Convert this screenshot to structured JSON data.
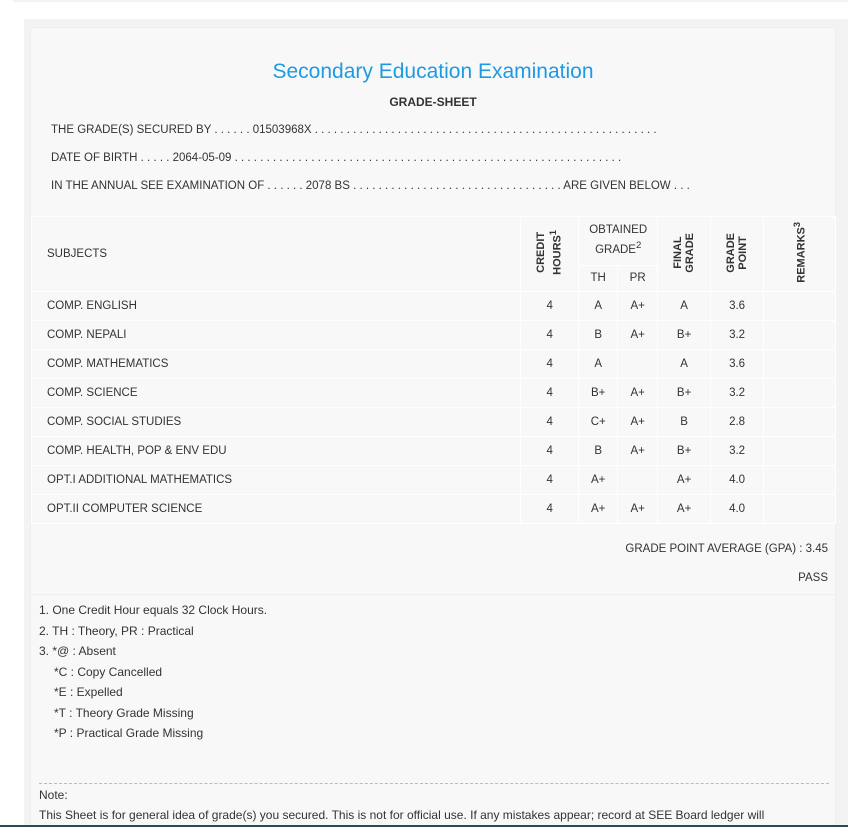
{
  "title": "Secondary Education Examination",
  "subtitle": "GRADE-SHEET",
  "info": {
    "secured_by": "THE GRADE(S) SECURED BY . . . . . . 01503968X . . . . . . . . . . . . . . . . . . . . . . . . . . . . . . . . . . . . . . . . . . . . . . . . . . . . . .",
    "dob": "DATE OF BIRTH . . . . . 2064-05-09 . . . . . . . . . . . . . . . . . . . . . . . . . . . . . . . . . . . . . . . . . . . . . . . . . . . . . . . . . . . . .",
    "exam": "IN THE ANNUAL SEE EXAMINATION OF . . . . . . 2078 BS . . . . . . . . . . . . . . . . . . . . . . . . . . . . . . . . . ARE GIVEN BELOW . . ."
  },
  "headers": {
    "subjects": "SUBJECTS",
    "credit_line1": "CREDIT",
    "credit_line2": "HOURS",
    "credit_sup": "1",
    "obtained": "OBTAINED GRADE",
    "obtained_sup": "2",
    "th": "TH",
    "pr": "PR",
    "final_line1": "FINAL",
    "final_line2": "GRADE",
    "gp_line1": "GRADE",
    "gp_line2": "POINT",
    "remarks": "REMARKS",
    "remarks_sup": "3"
  },
  "rows": [
    {
      "subject": "COMP. ENGLISH",
      "credit": "4",
      "th": "A",
      "pr": "A+",
      "final": "A",
      "gp": "3.6",
      "remarks": ""
    },
    {
      "subject": "COMP. NEPALI",
      "credit": "4",
      "th": "B",
      "pr": "A+",
      "final": "B+",
      "gp": "3.2",
      "remarks": ""
    },
    {
      "subject": "COMP. MATHEMATICS",
      "credit": "4",
      "th": "A",
      "pr": "",
      "final": "A",
      "gp": "3.6",
      "remarks": ""
    },
    {
      "subject": "COMP. SCIENCE",
      "credit": "4",
      "th": "B+",
      "pr": "A+",
      "final": "B+",
      "gp": "3.2",
      "remarks": ""
    },
    {
      "subject": "COMP. SOCIAL STUDIES",
      "credit": "4",
      "th": "C+",
      "pr": "A+",
      "final": "B",
      "gp": "2.8",
      "remarks": ""
    },
    {
      "subject": "COMP. HEALTH, POP & ENV EDU",
      "credit": "4",
      "th": "B",
      "pr": "A+",
      "final": "B+",
      "gp": "3.2",
      "remarks": ""
    },
    {
      "subject": "OPT.I ADDITIONAL MATHEMATICS",
      "credit": "4",
      "th": "A+",
      "pr": "",
      "final": "A+",
      "gp": "4.0",
      "remarks": ""
    },
    {
      "subject": "OPT.II COMPUTER SCIENCE",
      "credit": "4",
      "th": "A+",
      "pr": "A+",
      "final": "A+",
      "gp": "4.0",
      "remarks": ""
    }
  ],
  "gpa": "GRADE POINT AVERAGE (GPA) : 3.45",
  "result": "PASS",
  "footnotes": [
    "1. One Credit Hour equals 32 Clock Hours.",
    "2. TH : Theory, PR : Practical",
    "3. *@ : Absent",
    "*C : Copy Cancelled",
    "*E : Expelled",
    "*T : Theory Grade Missing",
    "*P : Practical Grade Missing"
  ],
  "note_label": "Note:",
  "note_text": "This Sheet is for general idea of grade(s) you secured. This is not for official use. If any mistakes appear; record at SEE Board ledger will",
  "colors": {
    "title": "#1e9be0",
    "panel": "#f8f8f8"
  }
}
